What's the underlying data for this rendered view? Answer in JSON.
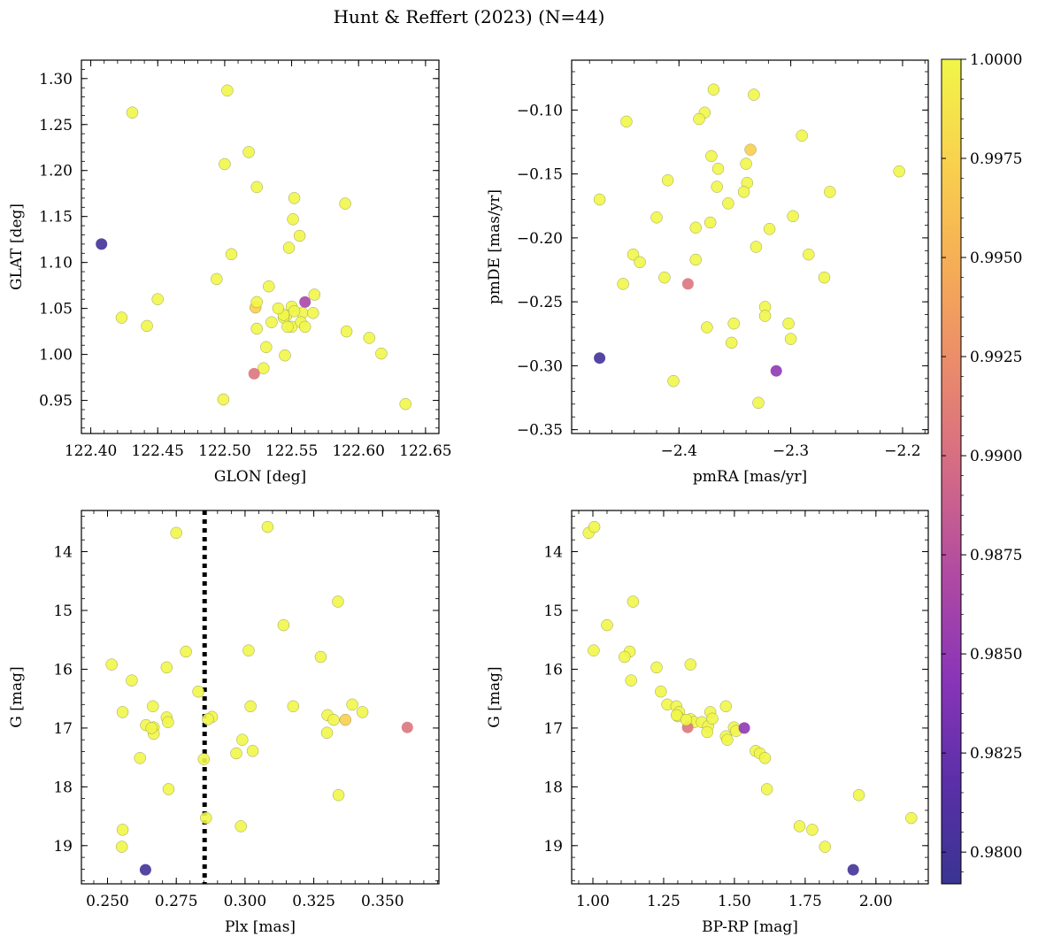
{
  "figure": {
    "title": "Hunt & Reffert (2023) (N=44)"
  },
  "colorbar": {
    "min": 0.9792,
    "max": 1.0,
    "ticks": [
      "0.9800",
      "0.9825",
      "0.9850",
      "0.9875",
      "0.9900",
      "0.9925",
      "0.9950",
      "0.9975",
      "1.0000"
    ],
    "tick_values": [
      0.98,
      0.9825,
      0.985,
      0.9875,
      0.99,
      0.9925,
      0.995,
      0.9975,
      1.0
    ],
    "colormap": "plasma-upper",
    "colormap_stops": [
      "#3a3492",
      "#5b2fa8",
      "#8a35b8",
      "#b04aa2",
      "#d46a86",
      "#ea8a6c",
      "#f6ad56",
      "#f9d14e",
      "#f1f649"
    ]
  },
  "chart_data": [
    {
      "type": "scatter",
      "name": "position",
      "xlabel": "GLON [deg]",
      "ylabel": "GLAT [deg]",
      "xlim": [
        122.393,
        122.66
      ],
      "ylim": [
        0.914,
        1.32
      ],
      "invert_y": false,
      "xticks": [
        122.4,
        122.45,
        122.5,
        122.55,
        122.6,
        122.65
      ],
      "xtick_labels": [
        "122.40",
        "122.45",
        "122.50",
        "122.55",
        "122.60",
        "122.65"
      ],
      "yticks": [
        0.95,
        1.0,
        1.05,
        1.1,
        1.15,
        1.2,
        1.25,
        1.3
      ],
      "ytick_labels": [
        "0.95",
        "1.00",
        "1.05",
        "1.10",
        "1.15",
        "1.20",
        "1.25",
        "1.30"
      ],
      "x": [
        122.502,
        122.431,
        122.518,
        122.5,
        122.524,
        122.552,
        122.59,
        122.551,
        122.556,
        122.408,
        122.505,
        122.548,
        122.45,
        122.494,
        122.533,
        122.56,
        122.567,
        122.523,
        122.524,
        122.55,
        122.546,
        122.544,
        122.558,
        122.535,
        122.566,
        122.55,
        122.557,
        122.524,
        122.547,
        122.56,
        122.442,
        122.591,
        122.608,
        122.531,
        122.545,
        122.529,
        122.617,
        122.522,
        122.499,
        122.635,
        122.423,
        122.552,
        122.544,
        122.54
      ],
      "y": [
        1.287,
        1.263,
        1.22,
        1.207,
        1.182,
        1.17,
        1.164,
        1.147,
        1.129,
        1.12,
        1.109,
        1.116,
        1.06,
        1.082,
        1.074,
        1.057,
        1.065,
        1.051,
        1.057,
        1.052,
        1.042,
        1.04,
        1.045,
        1.035,
        1.045,
        1.03,
        1.035,
        1.028,
        1.03,
        1.03,
        1.031,
        1.025,
        1.018,
        1.008,
        0.999,
        0.985,
        1.001,
        0.979,
        0.951,
        0.946,
        1.04,
        1.047,
        1.043,
        1.05
      ],
      "c": [
        1,
        1,
        1,
        1,
        1,
        1,
        1,
        1,
        1,
        0.98,
        1,
        1,
        1,
        1,
        1,
        0.9865,
        1,
        0.9972,
        1,
        1,
        1,
        1,
        1,
        1,
        1,
        1,
        1,
        1,
        1,
        1,
        1,
        1,
        1,
        1,
        1,
        1,
        1,
        0.9905,
        1,
        1,
        1,
        1,
        1,
        1
      ]
    },
    {
      "type": "scatter",
      "name": "proper-motion",
      "xlabel": "pmRA [mas/yr]",
      "ylabel": "pmDE [mas/yr]",
      "xlim": [
        -2.496,
        -2.177
      ],
      "ylim": [
        -0.353,
        -0.061
      ],
      "invert_y": false,
      "xticks": [
        -2.4,
        -2.3,
        -2.2
      ],
      "xtick_labels": [
        "−2.4",
        "−2.3",
        "−2.2"
      ],
      "yticks": [
        -0.35,
        -0.3,
        -0.25,
        -0.2,
        -0.15,
        -0.1
      ],
      "ytick_labels": [
        "−0.35",
        "−0.30",
        "−0.25",
        "−0.20",
        "−0.15",
        "−0.10"
      ],
      "x": [
        -2.369,
        -2.447,
        -2.377,
        -2.333,
        -2.382,
        -2.29,
        -2.371,
        -2.365,
        -2.34,
        -2.41,
        -2.339,
        -2.366,
        -2.471,
        -2.265,
        -2.342,
        -2.356,
        -2.372,
        -2.42,
        -2.385,
        -2.298,
        -2.203,
        -2.319,
        -2.441,
        -2.385,
        -2.435,
        -2.331,
        -2.284,
        -2.413,
        -2.45,
        -2.27,
        -2.323,
        -2.323,
        -2.351,
        -2.375,
        -2.302,
        -2.3,
        -2.353,
        -2.471,
        -2.405,
        -2.329,
        -2.313,
        -2.392,
        -2.336
      ],
      "y": [
        -0.084,
        -0.109,
        -0.102,
        -0.088,
        -0.107,
        -0.12,
        -0.136,
        -0.146,
        -0.142,
        -0.155,
        -0.157,
        -0.16,
        -0.17,
        -0.164,
        -0.164,
        -0.173,
        -0.188,
        -0.184,
        -0.192,
        -0.183,
        -0.148,
        -0.193,
        -0.213,
        -0.217,
        -0.219,
        -0.207,
        -0.213,
        -0.231,
        -0.236,
        -0.231,
        -0.254,
        -0.261,
        -0.267,
        -0.27,
        -0.267,
        -0.279,
        -0.282,
        -0.294,
        -0.312,
        -0.329,
        -0.304,
        -0.236,
        -0.131
      ],
      "c": [
        1,
        1,
        1,
        1,
        1,
        1,
        1,
        1,
        1,
        1,
        1,
        1,
        1,
        1,
        1,
        1,
        1,
        1,
        1,
        1,
        1,
        1,
        1,
        1,
        1,
        1,
        1,
        1,
        1,
        1,
        1,
        1,
        1,
        1,
        1,
        1,
        1,
        0.98,
        1,
        1,
        0.9848,
        0.9905,
        0.9972
      ]
    },
    {
      "type": "scatter",
      "name": "plx-magnitude",
      "xlabel": "Plx [mas]",
      "ylabel": "G [mag]",
      "xlim": [
        0.2405,
        0.3705
      ],
      "ylim": [
        13.3,
        19.65
      ],
      "invert_y": true,
      "xticks": [
        0.25,
        0.275,
        0.3,
        0.325,
        0.35
      ],
      "xtick_labels": [
        "0.250",
        "0.275",
        "0.300",
        "0.325",
        "0.350"
      ],
      "yticks": [
        14,
        15,
        16,
        17,
        18,
        19
      ],
      "ytick_labels": [
        "14",
        "15",
        "16",
        "17",
        "18",
        "19"
      ],
      "reference_line": {
        "x": 0.2853,
        "style": "dotted"
      },
      "x": [
        0.275,
        0.3082,
        0.3338,
        0.314,
        0.2785,
        0.3013,
        0.2515,
        0.3275,
        0.2588,
        0.2715,
        0.283,
        0.339,
        0.3175,
        0.2555,
        0.2665,
        0.3427,
        0.33,
        0.2715,
        0.302,
        0.288,
        0.2865,
        0.264,
        0.2668,
        0.272,
        0.2668,
        0.3298,
        0.299,
        0.3028,
        0.2968,
        0.2618,
        0.285,
        0.2722,
        0.334,
        0.2858,
        0.2985,
        0.2555,
        0.2552,
        0.2638,
        0.359,
        0.3365,
        0.3322,
        0.266
      ],
      "y": [
        13.68,
        13.58,
        14.85,
        15.25,
        15.7,
        15.68,
        15.92,
        15.79,
        16.19,
        15.97,
        16.38,
        16.6,
        16.63,
        16.73,
        16.63,
        16.73,
        16.78,
        16.82,
        16.63,
        16.81,
        16.85,
        16.95,
        16.99,
        16.9,
        17.1,
        17.08,
        17.2,
        17.39,
        17.43,
        17.51,
        17.53,
        18.04,
        18.14,
        18.53,
        18.67,
        18.73,
        19.02,
        19.41,
        16.99,
        16.86,
        16.86,
        17.0
      ],
      "c": [
        1,
        1,
        1,
        1,
        1,
        1,
        1,
        1,
        1,
        1,
        1,
        1,
        1,
        1,
        1,
        1,
        1,
        1,
        1,
        1,
        1,
        1,
        1,
        1,
        1,
        1,
        1,
        1,
        1,
        1,
        1,
        1,
        1,
        1,
        1,
        1,
        1,
        0.98,
        0.9905,
        0.9972,
        1,
        1
      ]
    },
    {
      "type": "scatter",
      "name": "color-magnitude",
      "xlabel": "BP-RP [mag]",
      "ylabel": "G [mag]",
      "xlim": [
        0.925,
        2.185
      ],
      "ylim": [
        13.3,
        19.65
      ],
      "invert_y": true,
      "xticks": [
        1.0,
        1.25,
        1.5,
        1.75,
        2.0
      ],
      "xtick_labels": [
        "1.00",
        "1.25",
        "1.50",
        "1.75",
        "2.00"
      ],
      "yticks": [
        14,
        15,
        16,
        17,
        18,
        19
      ],
      "ytick_labels": [
        "14",
        "15",
        "16",
        "17",
        "18",
        "19"
      ],
      "x": [
        0.985,
        1.005,
        1.142,
        1.05,
        1.003,
        1.13,
        1.112,
        1.345,
        1.24,
        1.135,
        1.225,
        1.263,
        1.295,
        1.47,
        1.415,
        1.305,
        1.3,
        1.345,
        1.358,
        1.385,
        1.296,
        1.407,
        1.422,
        1.498,
        1.506,
        1.404,
        1.47,
        1.475,
        1.575,
        1.59,
        1.608,
        1.615,
        1.94,
        2.125,
        1.73,
        1.775,
        1.82,
        1.92,
        1.335,
        1.535,
        1.33
      ],
      "y": [
        13.68,
        13.58,
        14.85,
        15.25,
        15.68,
        15.7,
        15.79,
        15.92,
        16.38,
        16.19,
        15.97,
        16.6,
        16.63,
        16.63,
        16.73,
        16.73,
        16.8,
        16.85,
        16.9,
        16.9,
        16.78,
        16.97,
        16.84,
        16.99,
        17.05,
        17.07,
        17.14,
        17.2,
        17.39,
        17.43,
        17.51,
        18.04,
        18.14,
        18.53,
        18.67,
        18.73,
        19.02,
        19.41,
        16.99,
        17.0,
        16.86
      ],
      "c": [
        1,
        1,
        1,
        1,
        1,
        1,
        1,
        1,
        1,
        1,
        1,
        1,
        1,
        1,
        1,
        1,
        1,
        1,
        1,
        1,
        1,
        1,
        1,
        1,
        1,
        1,
        1,
        1,
        1,
        1,
        1,
        1,
        1,
        1,
        1,
        1,
        1,
        0.98,
        0.9905,
        0.9848,
        1
      ]
    }
  ]
}
